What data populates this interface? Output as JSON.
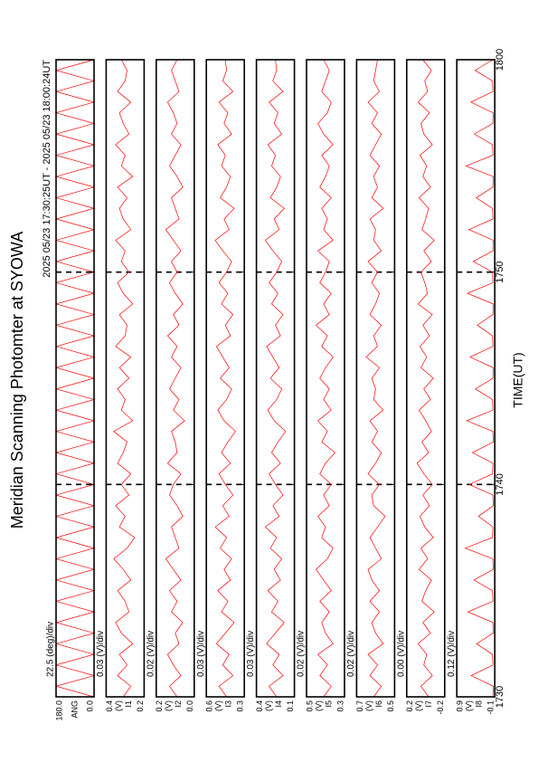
{
  "chart_data": {
    "type": "line",
    "title": "Meridian Scanning Photomter at SYOWA",
    "subtitle": "2025 05/23 17:30:25UT - 2025 05/23 18:00:24UT",
    "xlabel": "TIME(UT)",
    "xlim": [
      "17:30",
      "18:00"
    ],
    "xticks": [
      {
        "value": "17:30",
        "label": "1730"
      },
      {
        "value": "17:40",
        "label": "1740"
      },
      {
        "value": "17:50",
        "label": "1750"
      },
      {
        "value": "18:00",
        "label": "1800"
      }
    ],
    "grid": true,
    "x": [
      "17:30:00",
      "17:30:30",
      "17:31:00",
      "17:31:30",
      "17:32:00",
      "17:32:30",
      "17:33:00",
      "17:33:30",
      "17:34:00",
      "17:34:30",
      "17:35:00",
      "17:35:30",
      "17:36:00",
      "17:36:30",
      "17:37:00",
      "17:37:30",
      "17:38:00",
      "17:38:30",
      "17:39:00",
      "17:39:30",
      "17:40:00",
      "17:40:30",
      "17:41:00",
      "17:41:30",
      "17:42:00",
      "17:42:30",
      "17:43:00",
      "17:43:30",
      "17:44:00",
      "17:44:30",
      "17:45:00",
      "17:45:30",
      "17:46:00",
      "17:46:30",
      "17:47:00",
      "17:47:30",
      "17:48:00",
      "17:48:30",
      "17:49:00",
      "17:49:30",
      "17:50:00",
      "17:50:30",
      "17:51:00",
      "17:51:30",
      "17:52:00",
      "17:52:30",
      "17:53:00",
      "17:53:30",
      "17:54:00",
      "17:54:30",
      "17:55:00",
      "17:55:30",
      "17:56:00",
      "17:56:30",
      "17:57:00",
      "17:57:30",
      "17:58:00",
      "17:58:30",
      "17:59:00",
      "17:59:30",
      "18:00:00"
    ],
    "panels": [
      {
        "name": "ANG",
        "scale": "22.5 (deg)/div",
        "color": "#ff0000",
        "ylim": [
          0,
          180
        ],
        "yticks": [
          {
            "value": 180,
            "label": "180.0"
          },
          {
            "value": 0,
            "label": "0.0"
          }
        ],
        "values": [
          0,
          180,
          0,
          180,
          0,
          180,
          0,
          180,
          0,
          180,
          0,
          180,
          0,
          180,
          0,
          180,
          0,
          180,
          0,
          180,
          0,
          180,
          0,
          180,
          0,
          180,
          0,
          180,
          0,
          180,
          0,
          180,
          0,
          180,
          0,
          180,
          0,
          180,
          0,
          180,
          0,
          180,
          0,
          180,
          0,
          180,
          0,
          180,
          0,
          180,
          0,
          180,
          0,
          180,
          0,
          180,
          0,
          180,
          0,
          180,
          0
        ]
      },
      {
        "name": "I1",
        "unit": "(V)",
        "scale": "0.03 (V)/div",
        "color": "#ff0000",
        "ylim": [
          0.2,
          0.4
        ],
        "yticks": [
          0.4,
          0.2
        ],
        "values": [
          0.31,
          0.27,
          0.34,
          0.29,
          0.33,
          0.26,
          0.32,
          0.35,
          0.28,
          0.3,
          0.34,
          0.27,
          0.31,
          0.36,
          0.29,
          0.25,
          0.33,
          0.3,
          0.35,
          0.28,
          0.32,
          0.27,
          0.34,
          0.31,
          0.29,
          0.36,
          0.26,
          0.32,
          0.3,
          0.34,
          0.28,
          0.33,
          0.27,
          0.35,
          0.3,
          0.29,
          0.33,
          0.26,
          0.31,
          0.34,
          0.28,
          0.32,
          0.3,
          0.35,
          0.27,
          0.31,
          0.33,
          0.29,
          0.34,
          0.26,
          0.32,
          0.3,
          0.35,
          0.28,
          0.31,
          0.33,
          0.27,
          0.34,
          0.3,
          0.29,
          0.32
        ]
      },
      {
        "name": "I2",
        "unit": "(V)",
        "scale": "0.02 (V)/div",
        "color": "#ff0000",
        "ylim": [
          0.0,
          0.2
        ],
        "yticks": [
          0.2,
          {
            "value": 0,
            "label": "0.0"
          }
        ],
        "values": [
          0.09,
          0.13,
          0.07,
          0.11,
          0.14,
          0.08,
          0.1,
          0.06,
          0.12,
          0.09,
          0.13,
          0.07,
          0.11,
          0.15,
          0.08,
          0.1,
          0.12,
          0.06,
          0.09,
          0.13,
          0.11,
          0.07,
          0.14,
          0.09,
          0.1,
          0.12,
          0.05,
          0.11,
          0.08,
          0.13,
          0.1,
          0.07,
          0.12,
          0.09,
          0.14,
          0.08,
          0.11,
          0.06,
          0.1,
          0.13,
          0.09,
          0.12,
          0.07,
          0.11,
          0.15,
          0.08,
          0.1,
          0.12,
          0.06,
          0.09,
          0.13,
          0.1,
          0.07,
          0.12,
          0.09,
          0.11,
          0.14,
          0.08,
          0.1,
          0.12,
          0.09
        ]
      },
      {
        "name": "I3",
        "unit": "(V)",
        "scale": "0.03 (V)/div",
        "color": "#ff0000",
        "ylim": [
          0.3,
          0.6
        ],
        "yticks": [
          0.6,
          0.3
        ],
        "values": [
          0.44,
          0.5,
          0.39,
          0.47,
          0.42,
          0.52,
          0.45,
          0.38,
          0.48,
          0.43,
          0.51,
          0.41,
          0.46,
          0.4,
          0.49,
          0.44,
          0.53,
          0.42,
          0.47,
          0.39,
          0.45,
          0.5,
          0.41,
          0.48,
          0.43,
          0.37,
          0.46,
          0.51,
          0.44,
          0.4,
          0.49,
          0.42,
          0.47,
          0.52,
          0.41,
          0.45,
          0.39,
          0.48,
          0.43,
          0.5,
          0.44,
          0.4,
          0.47,
          0.53,
          0.42,
          0.46,
          0.38,
          0.49,
          0.44,
          0.41,
          0.48,
          0.45,
          0.51,
          0.4,
          0.46,
          0.43,
          0.5,
          0.39,
          0.47,
          0.44,
          0.45
        ]
      },
      {
        "name": "I4",
        "unit": "(V)",
        "scale": "0.03 (V)/div",
        "color": "#ff0000",
        "ylim": [
          0.1,
          0.4
        ],
        "yticks": [
          0.4,
          0.1
        ],
        "values": [
          0.24,
          0.3,
          0.19,
          0.27,
          0.22,
          0.32,
          0.25,
          0.18,
          0.28,
          0.23,
          0.31,
          0.21,
          0.26,
          0.2,
          0.29,
          0.24,
          0.33,
          0.22,
          0.27,
          0.19,
          0.25,
          0.3,
          0.21,
          0.28,
          0.23,
          0.17,
          0.26,
          0.31,
          0.24,
          0.2,
          0.29,
          0.22,
          0.27,
          0.32,
          0.21,
          0.25,
          0.19,
          0.28,
          0.23,
          0.3,
          0.24,
          0.2,
          0.27,
          0.33,
          0.22,
          0.26,
          0.18,
          0.29,
          0.24,
          0.21,
          0.28,
          0.25,
          0.31,
          0.2,
          0.26,
          0.23,
          0.3,
          0.19,
          0.27,
          0.24,
          0.25
        ]
      },
      {
        "name": "I5",
        "unit": "(V)",
        "scale": "0.02 (V)/div",
        "color": "#ff0000",
        "ylim": [
          0.3,
          0.5
        ],
        "yticks": [
          0.5,
          0.3
        ],
        "values": [
          0.41,
          0.37,
          0.43,
          0.39,
          0.44,
          0.36,
          0.4,
          0.42,
          0.38,
          0.43,
          0.37,
          0.41,
          0.45,
          0.39,
          0.36,
          0.42,
          0.4,
          0.44,
          0.38,
          0.41,
          0.37,
          0.43,
          0.4,
          0.35,
          0.42,
          0.39,
          0.44,
          0.37,
          0.41,
          0.38,
          0.43,
          0.4,
          0.36,
          0.42,
          0.39,
          0.45,
          0.38,
          0.41,
          0.37,
          0.43,
          0.4,
          0.38,
          0.44,
          0.36,
          0.41,
          0.39,
          0.42,
          0.37,
          0.43,
          0.4,
          0.38,
          0.42,
          0.36,
          0.41,
          0.44,
          0.39,
          0.37,
          0.42,
          0.4,
          0.38,
          0.41
        ]
      },
      {
        "name": "I6",
        "unit": "(V)",
        "scale": "0.02 (V)/div",
        "color": "#ff0000",
        "ylim": [
          0.5,
          0.7
        ],
        "yticks": [
          0.7,
          0.5
        ],
        "values": [
          0.61,
          0.57,
          0.63,
          0.59,
          0.64,
          0.56,
          0.6,
          0.62,
          0.58,
          0.63,
          0.58,
          0.62,
          0.64,
          0.57,
          0.6,
          0.63,
          0.59,
          0.55,
          0.61,
          0.62,
          0.58,
          0.64,
          0.6,
          0.57,
          0.62,
          0.59,
          0.63,
          0.56,
          0.61,
          0.6,
          0.62,
          0.58,
          0.65,
          0.59,
          0.61,
          0.57,
          0.63,
          0.6,
          0.58,
          0.62,
          0.59,
          0.64,
          0.57,
          0.61,
          0.6,
          0.63,
          0.56,
          0.62,
          0.59,
          0.61,
          0.58,
          0.63,
          0.6,
          0.57,
          0.62,
          0.59,
          0.64,
          0.58,
          0.61,
          0.6,
          0.59
        ]
      },
      {
        "name": "I7",
        "unit": "(V)",
        "scale": "0.00 (V)/div",
        "color": "#ff0000",
        "ylim": [
          -0.2,
          0.2
        ],
        "yticks": [
          0.2,
          -0.2
        ],
        "values": [
          -0.03,
          0.05,
          -0.07,
          0.02,
          -0.01,
          0.08,
          -0.05,
          0.03,
          -0.09,
          0.04,
          0.0,
          -0.06,
          0.07,
          -0.02,
          0.05,
          -0.08,
          0.01,
          0.06,
          -0.04,
          0.03,
          -0.07,
          0.02,
          0.09,
          -0.03,
          0.04,
          -0.06,
          0.0,
          0.07,
          -0.05,
          0.02,
          -0.08,
          0.05,
          -0.01,
          0.06,
          -0.04,
          0.03,
          -0.07,
          0.08,
          -0.02,
          0.01,
          0.05,
          -0.06,
          0.02,
          -0.09,
          0.04,
          0.0,
          -0.03,
          0.07,
          -0.05,
          0.03,
          -0.01,
          0.06,
          -0.07,
          0.02,
          0.05,
          -0.04,
          0.08,
          -0.02,
          0.01,
          -0.06,
          0.03
        ]
      },
      {
        "name": "I8",
        "unit": "(V)",
        "scale": "0.12 (V)/div",
        "color": "#ff0000",
        "ylim": [
          -0.1,
          0.9
        ],
        "yticks": [
          0.9,
          -0.1
        ],
        "values": [
          -0.05,
          -0.06,
          0.52,
          -0.05,
          -0.04,
          0.38,
          -0.06,
          -0.05,
          0.61,
          -0.05,
          -0.04,
          0.45,
          -0.06,
          -0.05,
          0.68,
          -0.04,
          -0.05,
          0.33,
          -0.06,
          -0.05,
          0.57,
          -0.04,
          -0.05,
          0.49,
          -0.06,
          -0.05,
          0.64,
          -0.05,
          -0.04,
          0.41,
          -0.05,
          -0.06,
          0.55,
          -0.05,
          -0.04,
          0.36,
          -0.05,
          -0.06,
          0.62,
          -0.05,
          -0.04,
          0.47,
          -0.05,
          -0.06,
          0.58,
          -0.05,
          -0.04,
          0.39,
          -0.05,
          -0.06,
          0.66,
          -0.05,
          -0.04,
          0.44,
          -0.05,
          -0.06,
          0.53,
          -0.05,
          -0.04,
          0.42,
          -0.05
        ]
      }
    ]
  }
}
